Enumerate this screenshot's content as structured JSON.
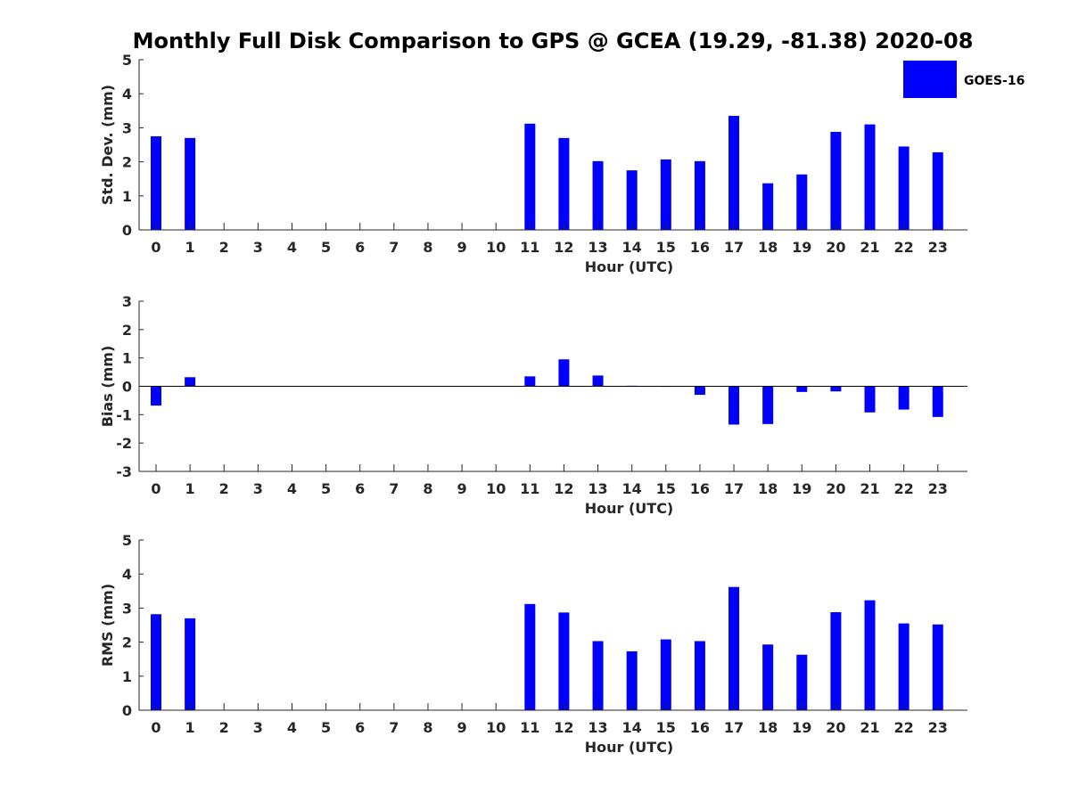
{
  "title": "Monthly Full Disk Comparison to GPS @ GCEA (19.29, -81.38) 2020-08",
  "legend": {
    "label": "GOES-16",
    "color": "#0000ff",
    "placement": "top-right"
  },
  "chart_data": [
    {
      "type": "bar",
      "ylabel": "Std. Dev. (mm)",
      "xlabel": "Hour (UTC)",
      "ylim": [
        0,
        5
      ],
      "yticks": [
        "0",
        "1",
        "2",
        "3",
        "4",
        "5"
      ],
      "xticks": [
        "0",
        "1",
        "2",
        "3",
        "4",
        "5",
        "6",
        "7",
        "8",
        "9",
        "10",
        "11",
        "12",
        "13",
        "14",
        "15",
        "16",
        "17",
        "18",
        "19",
        "20",
        "21",
        "22",
        "23"
      ],
      "grid": false,
      "series": [
        {
          "name": "GOES-16",
          "color": "#0000ff",
          "values": [
            2.75,
            2.7,
            null,
            null,
            null,
            null,
            null,
            null,
            null,
            null,
            null,
            3.12,
            2.7,
            2.02,
            1.75,
            2.07,
            2.02,
            3.35,
            1.37,
            1.63,
            2.88,
            3.1,
            2.45,
            2.28
          ]
        }
      ]
    },
    {
      "type": "bar",
      "ylabel": "Bias (mm)",
      "xlabel": "Hour (UTC)",
      "ylim": [
        -3,
        3
      ],
      "yticks": [
        "-3",
        "-2",
        "-1",
        "0",
        "1",
        "2",
        "3"
      ],
      "xticks": [
        "0",
        "1",
        "2",
        "3",
        "4",
        "5",
        "6",
        "7",
        "8",
        "9",
        "10",
        "11",
        "12",
        "13",
        "14",
        "15",
        "16",
        "17",
        "18",
        "19",
        "20",
        "21",
        "22",
        "23"
      ],
      "grid": false,
      "series": [
        {
          "name": "GOES-16",
          "color": "#0000ff",
          "values": [
            -0.68,
            0.32,
            null,
            null,
            null,
            null,
            null,
            null,
            null,
            null,
            null,
            0.35,
            0.95,
            0.38,
            0.02,
            -0.02,
            -0.3,
            -1.35,
            -1.33,
            -0.2,
            -0.18,
            -0.92,
            -0.82,
            -1.08
          ]
        }
      ]
    },
    {
      "type": "bar",
      "ylabel": "RMS (mm)",
      "xlabel": "Hour (UTC)",
      "ylim": [
        0,
        5
      ],
      "yticks": [
        "0",
        "1",
        "2",
        "3",
        "4",
        "5"
      ],
      "xticks": [
        "0",
        "1",
        "2",
        "3",
        "4",
        "5",
        "6",
        "7",
        "8",
        "9",
        "10",
        "11",
        "12",
        "13",
        "14",
        "15",
        "16",
        "17",
        "18",
        "19",
        "20",
        "21",
        "22",
        "23"
      ],
      "grid": false,
      "series": [
        {
          "name": "GOES-16",
          "color": "#0000ff",
          "values": [
            2.82,
            2.7,
            null,
            null,
            null,
            null,
            null,
            null,
            null,
            null,
            null,
            3.12,
            2.87,
            2.03,
            1.73,
            2.08,
            2.03,
            3.62,
            1.93,
            1.63,
            2.88,
            3.23,
            2.55,
            2.52
          ]
        }
      ]
    }
  ]
}
